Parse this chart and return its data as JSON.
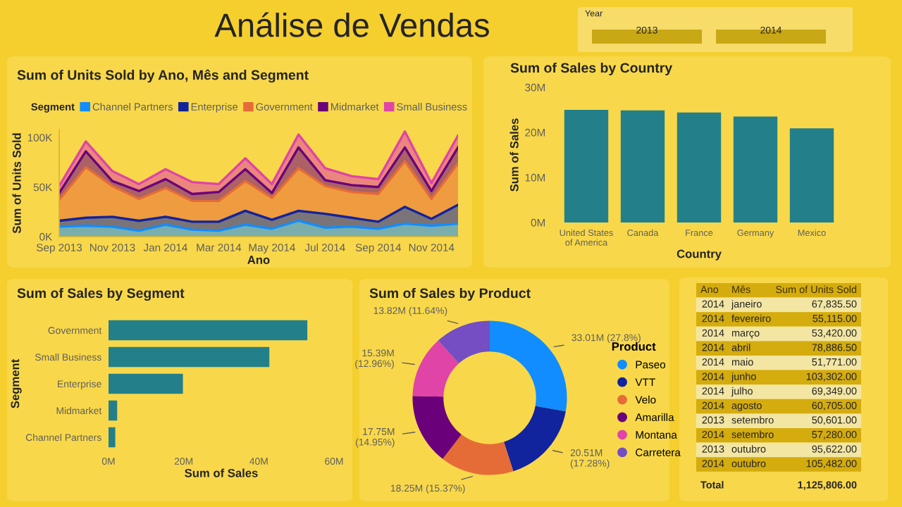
{
  "chart_data": [
    {
      "type": "other",
      "title": "Análise de Vendas",
      "annotations": [
        "Year",
        "2013",
        "2014"
      ]
    },
    {
      "type": "area",
      "title": "Sum of Units Sold by Ano, Mês and Segment",
      "xlabel": "Ano",
      "ylabel": "Sum of Units Sold",
      "legend_title": "Segment",
      "legend": "top",
      "stacked": true,
      "grid": false,
      "x": [
        "2013-09",
        "2013-10",
        "2013-11",
        "2013-12",
        "2014-01",
        "2014-02",
        "2014-03",
        "2014-04",
        "2014-05",
        "2014-06",
        "2014-07",
        "2014-08",
        "2014-09",
        "2014-10",
        "2014-11",
        "2014-12"
      ],
      "xlim": [
        "2013-09",
        "2014-12"
      ],
      "xticks": [
        {
          "value": "2013-09",
          "label": "Sep 2013"
        },
        {
          "value": "2013-11",
          "label": "Nov 2013"
        },
        {
          "value": "2014-01",
          "label": "Jan 2014"
        },
        {
          "value": "2014-03",
          "label": "Mar 2014"
        },
        {
          "value": "2014-05",
          "label": "May 2014"
        },
        {
          "value": "2014-07",
          "label": "Jul 2014"
        },
        {
          "value": "2014-09",
          "label": "Sep 2014"
        },
        {
          "value": "2014-11",
          "label": "Nov 2014"
        }
      ],
      "ylim": [
        0,
        108
      ],
      "yticks": [
        {
          "value": 0,
          "label": "0K"
        },
        {
          "value": 50,
          "label": "50K"
        },
        {
          "value": 100,
          "label": "100K"
        }
      ],
      "series": [
        {
          "name": "Channel Partners",
          "color": "#118dff",
          "values": [
            10,
            11,
            10,
            6,
            12,
            7,
            6,
            12,
            8,
            16,
            9,
            10,
            8,
            13,
            11,
            13
          ]
        },
        {
          "name": "Enterprise",
          "color": "#12239e",
          "values": [
            6,
            8,
            10,
            10,
            8,
            8,
            9,
            14,
            9,
            10,
            14,
            9,
            7,
            17,
            7,
            19
          ]
        },
        {
          "name": "Government",
          "color": "#e66c37",
          "values": [
            21,
            51,
            31,
            22,
            29,
            21,
            21,
            30,
            22,
            43,
            28,
            26,
            28,
            46,
            20,
            42
          ]
        },
        {
          "name": "Midmarket",
          "color": "#6b007b",
          "values": [
            7,
            16,
            5,
            8,
            9,
            7,
            9,
            12,
            5,
            21,
            6,
            7,
            7,
            14,
            8,
            16
          ]
        },
        {
          "name": "Small Business",
          "color": "#e044a7",
          "values": [
            7,
            10,
            10,
            7,
            10,
            12,
            8,
            11,
            9,
            13,
            12,
            9,
            8,
            16,
            8,
            12
          ]
        }
      ]
    },
    {
      "type": "bar",
      "title": "Sum of Sales by Country",
      "xlabel": "Country",
      "ylabel": "Sum of Sales",
      "grid": false,
      "categories": [
        "United States\nof America",
        "Canada",
        "France",
        "Germany",
        "Mexico"
      ],
      "values": [
        25.0,
        24.9,
        24.4,
        23.5,
        20.9
      ],
      "color": "#23808a",
      "ylim": [
        0,
        30
      ],
      "yticks": [
        {
          "value": 0,
          "label": "0M"
        },
        {
          "value": 10,
          "label": "10M"
        },
        {
          "value": 20,
          "label": "20M"
        },
        {
          "value": 30,
          "label": "30M"
        }
      ]
    },
    {
      "type": "bar",
      "orientation": "horizontal",
      "title": "Sum of Sales by Segment",
      "xlabel": "Sum of Sales",
      "ylabel": "Segment",
      "grid": false,
      "categories": [
        "Government",
        "Small Business",
        "Enterprise",
        "Midmarket",
        "Channel Partners"
      ],
      "values": [
        52.9,
        42.8,
        19.8,
        2.3,
        1.8
      ],
      "color": "#23808a",
      "xlim": [
        0,
        60
      ],
      "xticks": [
        {
          "value": 0,
          "label": "0M"
        },
        {
          "value": 20,
          "label": "20M"
        },
        {
          "value": 40,
          "label": "40M"
        },
        {
          "value": 60,
          "label": "60M"
        }
      ]
    },
    {
      "type": "donut",
      "title": "Sum of Sales by Product",
      "legend_title": "Product",
      "legend": "right",
      "categories": [
        "Paseo",
        "VTT",
        "Velo",
        "Amarilla",
        "Montana",
        "Carretera"
      ],
      "values": [
        33010000,
        20510000,
        18250000,
        17750000,
        15390000,
        13820000
      ],
      "colors": [
        "#118dff",
        "#12239e",
        "#e66c37",
        "#6b007b",
        "#e044a7",
        "#744ec2"
      ],
      "value_labels": [
        "33.01M (27.8%)",
        "20.51M\n(17.28%)",
        "18.25M (15.37%)",
        "17.75M\n(14.95%)",
        "15.39M\n(12.96%)",
        "13.82M (11.64%)"
      ]
    },
    {
      "type": "other",
      "annotations": [
        "Ano",
        "Mês",
        "Sum of Units Sold",
        "2014",
        "janeiro",
        "67,835.50",
        "2014",
        "fevereiro",
        "55,115.00",
        "2014",
        "março",
        "53,420.00",
        "2014",
        "abril",
        "78,886.50",
        "2014",
        "maio",
        "51,771.00",
        "2014",
        "junho",
        "103,302.00",
        "2014",
        "julho",
        "69,349.00",
        "2014",
        "agosto",
        "60,705.00",
        "2013",
        "setembro",
        "50,601.00",
        "2014",
        "setembro",
        "57,280.00",
        "2013",
        "outubro",
        "95,622.00",
        "2014",
        "outubro",
        "105,482.00",
        "Total",
        "1,125,806.00"
      ]
    }
  ]
}
